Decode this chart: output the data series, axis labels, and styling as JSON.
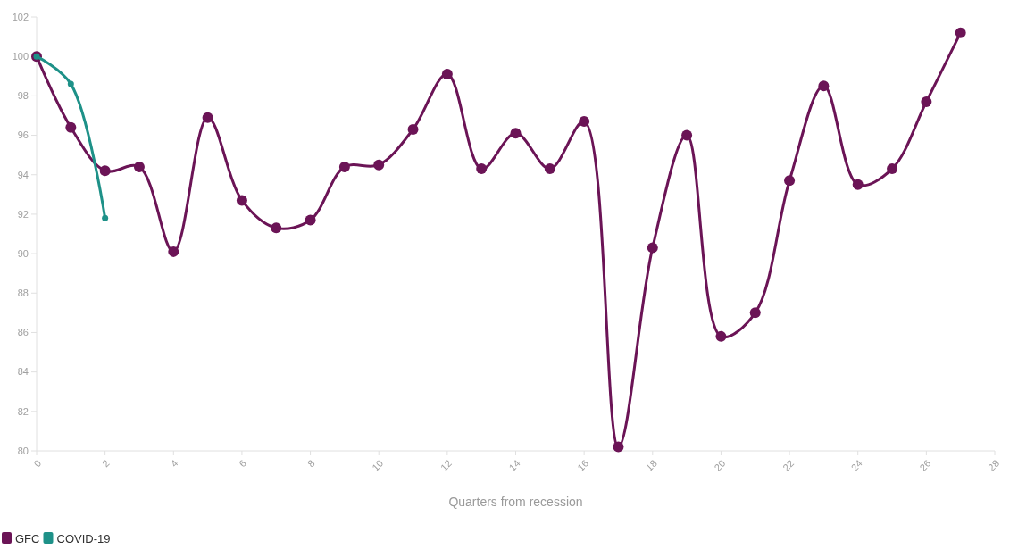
{
  "chart_data": {
    "type": "line",
    "xlabel": "Quarters from recession",
    "xlim": [
      0,
      28
    ],
    "xticks": [
      0,
      2,
      4,
      6,
      8,
      10,
      12,
      14,
      16,
      18,
      20,
      22,
      24,
      26,
      28
    ],
    "ylim": [
      80,
      102
    ],
    "yticks": [
      80,
      82,
      84,
      86,
      88,
      90,
      92,
      94,
      96,
      98,
      100,
      102
    ],
    "grid": false,
    "legend": "bottom left",
    "marker": "circle",
    "line_style": "solid",
    "series": [
      {
        "name": "GFC",
        "color": "#6b1456",
        "x": [
          0,
          1,
          2,
          3,
          4,
          5,
          6,
          7,
          8,
          9,
          10,
          11,
          12,
          13,
          14,
          15,
          16,
          17,
          18,
          19,
          20,
          21,
          22,
          23,
          24,
          25,
          26,
          27
        ],
        "values": [
          100,
          96.4,
          94.2,
          94.4,
          90.1,
          96.9,
          92.7,
          91.3,
          91.7,
          94.4,
          94.5,
          96.3,
          99.1,
          94.3,
          96.1,
          94.3,
          96.7,
          80.2,
          90.3,
          96.0,
          85.8,
          87.0,
          93.7,
          98.5,
          93.5,
          94.3,
          97.7,
          101.2
        ]
      },
      {
        "name": "COVID-19",
        "color": "#1e9188",
        "x": [
          0,
          1,
          2
        ],
        "values": [
          100,
          98.6,
          91.8
        ]
      }
    ]
  }
}
